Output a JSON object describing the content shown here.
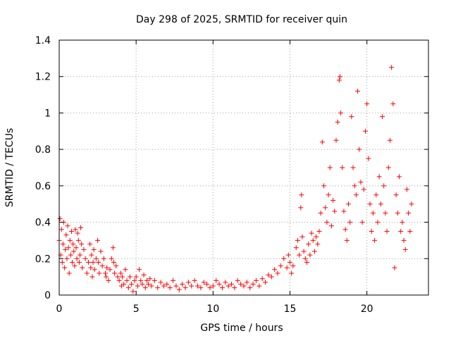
{
  "chart_data": {
    "type": "scatter",
    "title": "Day 298 of 2025, SRMTID for receiver quin",
    "xlabel": "GPS time / hours",
    "ylabel": "SRMTID / TECUs",
    "xlim": [
      0,
      24
    ],
    "ylim": [
      0,
      1.4
    ],
    "x_ticks": [
      0,
      5,
      10,
      15,
      20
    ],
    "x_tick_labels": [
      "0",
      "5",
      "10",
      "15",
      "20"
    ],
    "y_ticks": [
      0,
      0.2,
      0.4,
      0.6,
      0.8,
      1.0,
      1.2,
      1.4
    ],
    "y_tick_labels": [
      "0",
      "0.2",
      "0.4",
      "0.6",
      "0.8",
      "1",
      "1.2",
      "1.4"
    ],
    "grid": true,
    "marker": "plus",
    "marker_color": "#ff0000",
    "series": [
      {
        "name": "SRMTID",
        "points": [
          [
            0.0,
            0.3
          ],
          [
            0.05,
            0.42
          ],
          [
            0.1,
            0.22
          ],
          [
            0.15,
            0.36
          ],
          [
            0.2,
            0.18
          ],
          [
            0.25,
            0.28
          ],
          [
            0.3,
            0.4
          ],
          [
            0.35,
            0.15
          ],
          [
            0.4,
            0.25
          ],
          [
            0.45,
            0.33
          ],
          [
            0.5,
            0.2
          ],
          [
            0.55,
            0.38
          ],
          [
            0.6,
            0.26
          ],
          [
            0.65,
            0.12
          ],
          [
            0.7,
            0.3
          ],
          [
            0.75,
            0.22
          ],
          [
            0.8,
            0.35
          ],
          [
            0.85,
            0.18
          ],
          [
            0.9,
            0.28
          ],
          [
            0.95,
            0.24
          ],
          [
            1.0,
            0.16
          ],
          [
            1.05,
            0.36
          ],
          [
            1.1,
            0.26
          ],
          [
            1.15,
            0.2
          ],
          [
            1.2,
            0.34
          ],
          [
            1.25,
            0.3
          ],
          [
            1.3,
            0.18
          ],
          [
            1.35,
            0.22
          ],
          [
            1.4,
            0.37
          ],
          [
            1.45,
            0.28
          ],
          [
            1.5,
            0.15
          ],
          [
            1.6,
            0.25
          ],
          [
            1.7,
            0.2
          ],
          [
            1.8,
            0.12
          ],
          [
            1.9,
            0.18
          ],
          [
            2.0,
            0.28
          ],
          [
            2.05,
            0.15
          ],
          [
            2.1,
            0.22
          ],
          [
            2.15,
            0.1
          ],
          [
            2.2,
            0.18
          ],
          [
            2.25,
            0.25
          ],
          [
            2.3,
            0.14
          ],
          [
            2.4,
            0.2
          ],
          [
            2.5,
            0.3
          ],
          [
            2.55,
            0.18
          ],
          [
            2.6,
            0.12
          ],
          [
            2.7,
            0.24
          ],
          [
            2.8,
            0.16
          ],
          [
            2.9,
            0.2
          ],
          [
            3.0,
            0.12
          ],
          [
            3.05,
            0.1
          ],
          [
            3.1,
            0.15
          ],
          [
            3.2,
            0.08
          ],
          [
            3.3,
            0.14
          ],
          [
            3.4,
            0.2
          ],
          [
            3.5,
            0.26
          ],
          [
            3.55,
            0.18
          ],
          [
            3.6,
            0.12
          ],
          [
            3.7,
            0.16
          ],
          [
            3.8,
            0.1
          ],
          [
            3.9,
            0.08
          ],
          [
            4.0,
            0.12
          ],
          [
            4.05,
            0.05
          ],
          [
            4.1,
            0.1
          ],
          [
            4.2,
            0.06
          ],
          [
            4.3,
            0.14
          ],
          [
            4.4,
            0.08
          ],
          [
            4.5,
            0.04
          ],
          [
            4.6,
            0.1
          ],
          [
            4.7,
            0.06
          ],
          [
            4.8,
            0.02
          ],
          [
            4.9,
            0.08
          ],
          [
            5.0,
            0.1
          ],
          [
            5.1,
            0.05
          ],
          [
            5.2,
            0.14
          ],
          [
            5.3,
            0.08
          ],
          [
            5.4,
            0.06
          ],
          [
            5.5,
            0.11
          ],
          [
            5.6,
            0.04
          ],
          [
            5.7,
            0.08
          ],
          [
            5.8,
            0.06
          ],
          [
            5.9,
            0.09
          ],
          [
            6.0,
            0.05
          ],
          [
            6.2,
            0.08
          ],
          [
            6.4,
            0.04
          ],
          [
            6.6,
            0.07
          ],
          [
            6.8,
            0.05
          ],
          [
            7.0,
            0.06
          ],
          [
            7.2,
            0.04
          ],
          [
            7.4,
            0.08
          ],
          [
            7.6,
            0.05
          ],
          [
            7.8,
            0.03
          ],
          [
            8.0,
            0.06
          ],
          [
            8.2,
            0.04
          ],
          [
            8.4,
            0.07
          ],
          [
            8.6,
            0.05
          ],
          [
            8.8,
            0.08
          ],
          [
            9.0,
            0.05
          ],
          [
            9.2,
            0.04
          ],
          [
            9.4,
            0.07
          ],
          [
            9.6,
            0.06
          ],
          [
            9.8,
            0.04
          ],
          [
            10.0,
            0.05
          ],
          [
            10.2,
            0.08
          ],
          [
            10.4,
            0.06
          ],
          [
            10.6,
            0.04
          ],
          [
            10.8,
            0.07
          ],
          [
            11.0,
            0.05
          ],
          [
            11.2,
            0.06
          ],
          [
            11.4,
            0.04
          ],
          [
            11.6,
            0.08
          ],
          [
            11.8,
            0.06
          ],
          [
            12.0,
            0.05
          ],
          [
            12.2,
            0.07
          ],
          [
            12.4,
            0.04
          ],
          [
            12.6,
            0.06
          ],
          [
            12.8,
            0.08
          ],
          [
            13.0,
            0.05
          ],
          [
            13.2,
            0.09
          ],
          [
            13.4,
            0.07
          ],
          [
            13.6,
            0.11
          ],
          [
            13.8,
            0.1
          ],
          [
            14.0,
            0.14
          ],
          [
            14.2,
            0.12
          ],
          [
            14.4,
            0.16
          ],
          [
            14.6,
            0.2
          ],
          [
            14.8,
            0.15
          ],
          [
            14.9,
            0.22
          ],
          [
            15.0,
            0.18
          ],
          [
            15.1,
            0.12
          ],
          [
            15.2,
            0.16
          ],
          [
            15.4,
            0.26
          ],
          [
            15.5,
            0.3
          ],
          [
            15.6,
            0.22
          ],
          [
            15.7,
            0.48
          ],
          [
            15.75,
            0.55
          ],
          [
            15.8,
            0.32
          ],
          [
            15.9,
            0.24
          ],
          [
            16.0,
            0.2
          ],
          [
            16.1,
            0.18
          ],
          [
            16.2,
            0.28
          ],
          [
            16.3,
            0.22
          ],
          [
            16.4,
            0.34
          ],
          [
            16.5,
            0.3
          ],
          [
            16.6,
            0.24
          ],
          [
            16.7,
            0.32
          ],
          [
            16.8,
            0.28
          ],
          [
            16.9,
            0.35
          ],
          [
            17.0,
            0.45
          ],
          [
            17.1,
            0.84
          ],
          [
            17.2,
            0.6
          ],
          [
            17.3,
            0.48
          ],
          [
            17.4,
            0.4
          ],
          [
            17.5,
            0.55
          ],
          [
            17.6,
            0.7
          ],
          [
            17.7,
            0.38
          ],
          [
            17.8,
            0.52
          ],
          [
            17.9,
            0.46
          ],
          [
            18.0,
            0.85
          ],
          [
            18.1,
            0.95
          ],
          [
            18.2,
            1.18
          ],
          [
            18.25,
            1.2
          ],
          [
            18.3,
            1.0
          ],
          [
            18.4,
            0.7
          ],
          [
            18.5,
            0.46
          ],
          [
            18.6,
            0.36
          ],
          [
            18.7,
            0.3
          ],
          [
            18.8,
            0.5
          ],
          [
            18.9,
            0.4
          ],
          [
            19.0,
            0.98
          ],
          [
            19.1,
            0.7
          ],
          [
            19.2,
            0.6
          ],
          [
            19.3,
            0.55
          ],
          [
            19.4,
            1.12
          ],
          [
            19.5,
            0.8
          ],
          [
            19.6,
            0.62
          ],
          [
            19.7,
            0.4
          ],
          [
            19.8,
            0.58
          ],
          [
            19.9,
            0.9
          ],
          [
            20.0,
            1.05
          ],
          [
            20.1,
            0.75
          ],
          [
            20.2,
            0.5
          ],
          [
            20.3,
            0.35
          ],
          [
            20.4,
            0.45
          ],
          [
            20.5,
            0.3
          ],
          [
            20.6,
            0.55
          ],
          [
            20.7,
            0.4
          ],
          [
            20.8,
            0.65
          ],
          [
            20.9,
            0.5
          ],
          [
            21.0,
            0.98
          ],
          [
            21.1,
            0.6
          ],
          [
            21.2,
            0.45
          ],
          [
            21.3,
            0.35
          ],
          [
            21.4,
            0.7
          ],
          [
            21.5,
            0.85
          ],
          [
            21.6,
            1.25
          ],
          [
            21.7,
            1.05
          ],
          [
            21.8,
            0.15
          ],
          [
            21.9,
            0.55
          ],
          [
            22.0,
            0.45
          ],
          [
            22.1,
            0.65
          ],
          [
            22.2,
            0.35
          ],
          [
            22.3,
            0.4
          ],
          [
            22.4,
            0.3
          ],
          [
            22.5,
            0.25
          ],
          [
            22.6,
            0.58
          ],
          [
            22.7,
            0.45
          ],
          [
            22.8,
            0.35
          ],
          [
            22.9,
            0.5
          ]
        ]
      }
    ]
  }
}
